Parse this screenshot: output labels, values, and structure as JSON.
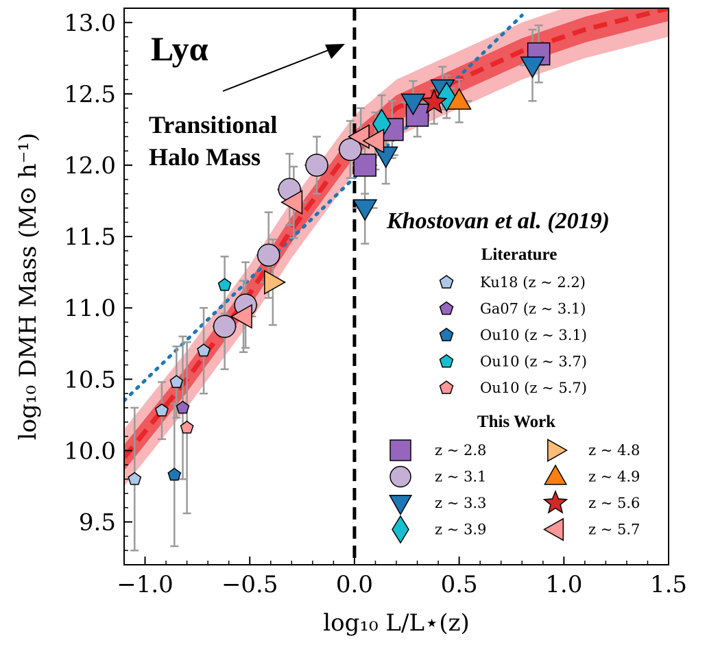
{
  "chart_data": {
    "type": "scatter",
    "title": "",
    "xlabel": "log₁₀ L/L⋆(z)",
    "ylabel": "log₁₀ DMH Mass (M⊙ h⁻¹)",
    "xlim": [
      -1.1,
      1.5
    ],
    "ylim": [
      9.2,
      13.1
    ],
    "xticks": [
      -1.0,
      -0.5,
      0.0,
      0.5,
      1.0,
      1.5
    ],
    "xtick_labels": [
      "−1.0",
      "−0.5",
      "0.0",
      "0.5",
      "1.0",
      "1.5"
    ],
    "yticks": [
      9.5,
      10.0,
      10.5,
      11.0,
      11.5,
      12.0,
      12.5,
      13.0
    ],
    "ytick_labels": [
      "9.5",
      "10.0",
      "10.5",
      "11.0",
      "11.5",
      "12.0",
      "12.5",
      "13.0"
    ],
    "grid": false,
    "vline_x": 0.0,
    "annotations": {
      "lya": "Lyα",
      "transitional_line1": "Transitional",
      "transitional_line2": "Halo Mass",
      "citation": "Khostovan et al. (2019)"
    },
    "legend": {
      "literature_title": "Literature",
      "this_work_title": "This Work",
      "position": "right"
    },
    "fit": {
      "name": "",
      "color": "#e8262b",
      "x": [
        -1.1,
        -0.8,
        -0.5,
        -0.3,
        -0.1,
        0.0,
        0.2,
        0.5,
        0.8,
        1.1,
        1.5
      ],
      "y": [
        9.95,
        10.5,
        11.1,
        11.55,
        11.95,
        12.15,
        12.4,
        12.6,
        12.8,
        12.95,
        13.1
      ],
      "band_inner": 0.09,
      "band_outer": 0.2
    },
    "dotted_line": {
      "color": "#1f77b4",
      "x": [
        -1.1,
        0.8
      ],
      "y": [
        10.35,
        13.05
      ]
    },
    "series": [
      {
        "name": "Ku18 (z ~ 2.2)",
        "group": "literature",
        "marker": "pentagon",
        "color": "#aec7e8",
        "points": [
          [
            -1.05,
            9.8,
            0.5
          ],
          [
            -0.92,
            10.28,
            0.2
          ],
          [
            -0.85,
            10.48,
            0.25
          ],
          [
            -0.72,
            10.7,
            0.3
          ]
        ]
      },
      {
        "name": "Ga07 (z ~ 3.1)",
        "group": "literature",
        "marker": "pentagon",
        "color": "#9467bd",
        "points": [
          [
            -0.82,
            10.3,
            0.5
          ]
        ]
      },
      {
        "name": "Ou10 (z ~ 3.1)",
        "group": "literature",
        "marker": "pentagon",
        "color": "#1f77b4",
        "points": [
          [
            -0.86,
            9.83,
            0.5
          ]
        ]
      },
      {
        "name": "Ou10 (z ~ 3.7)",
        "group": "literature",
        "marker": "pentagon",
        "color": "#17becf",
        "points": [
          [
            -0.62,
            11.16,
            0.2
          ]
        ]
      },
      {
        "name": "Ou10 (z ~ 5.7)",
        "group": "literature",
        "marker": "pentagon",
        "color": "#ff9896",
        "points": [
          [
            -0.8,
            10.16,
            0.6
          ]
        ]
      },
      {
        "name": "z ~ 2.8",
        "group": "this_work",
        "marker": "square",
        "color": "#9467bd",
        "points": [
          [
            0.05,
            12.0,
            0.2
          ],
          [
            0.18,
            12.25,
            0.2
          ],
          [
            0.3,
            12.35,
            0.15
          ],
          [
            0.88,
            12.78,
            0.2
          ]
        ]
      },
      {
        "name": "z ~ 3.1",
        "group": "this_work",
        "marker": "circle",
        "color": "#c5b0d5",
        "points": [
          [
            -0.62,
            10.87,
            0.3
          ],
          [
            -0.52,
            11.02,
            0.3
          ],
          [
            -0.41,
            11.37,
            0.3
          ],
          [
            -0.31,
            11.83,
            0.25
          ],
          [
            -0.18,
            12.0,
            0.2
          ],
          [
            -0.02,
            12.11,
            0.2
          ]
        ]
      },
      {
        "name": "z ~ 3.3",
        "group": "this_work",
        "marker": "triangle-down",
        "color": "#1f77b4",
        "points": [
          [
            0.05,
            11.7,
            0.25
          ],
          [
            0.15,
            12.07,
            0.2
          ],
          [
            0.28,
            12.44,
            0.15
          ],
          [
            0.42,
            12.54,
            0.15
          ],
          [
            0.85,
            12.7,
            0.25
          ]
        ]
      },
      {
        "name": "z ~ 3.9",
        "group": "this_work",
        "marker": "diamond",
        "color": "#17becf",
        "points": [
          [
            0.13,
            12.29,
            0.2
          ],
          [
            0.44,
            12.48,
            0.15
          ]
        ]
      },
      {
        "name": "z ~ 4.8",
        "group": "this_work",
        "marker": "triangle-right",
        "color": "#ffbb78",
        "points": [
          [
            -0.39,
            11.18,
            0.3
          ]
        ]
      },
      {
        "name": "z ~ 4.9",
        "group": "this_work",
        "marker": "triangle-up",
        "color": "#ff7f0e",
        "points": [
          [
            0.5,
            12.45,
            0.15
          ]
        ]
      },
      {
        "name": "z ~ 5.6",
        "group": "this_work",
        "marker": "star",
        "color": "#d62728",
        "points": [
          [
            0.38,
            12.44,
            0.15
          ]
        ]
      },
      {
        "name": "z ~ 5.7",
        "group": "this_work",
        "marker": "triangle-left",
        "color": "#ff9896",
        "points": [
          [
            -0.53,
            10.94,
            0.25
          ],
          [
            -0.29,
            11.74,
            0.25
          ],
          [
            0.03,
            12.2,
            0.2
          ],
          [
            0.1,
            12.17,
            0.2
          ]
        ]
      }
    ]
  }
}
